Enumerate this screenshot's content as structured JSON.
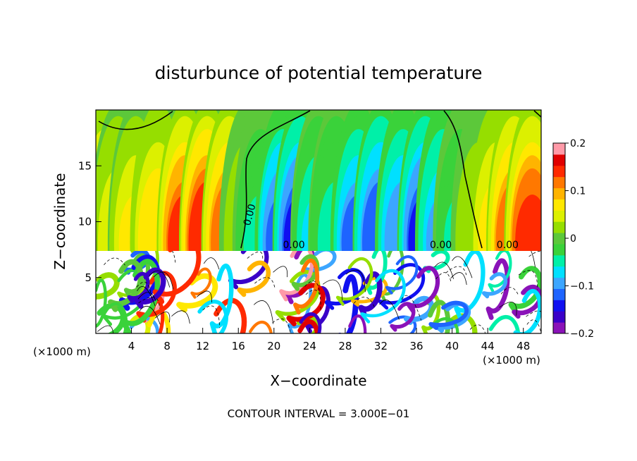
{
  "chart_data": {
    "type": "heatmap",
    "title": "disturbunce of potential temperature",
    "xlabel": "X−coordinate",
    "ylabel": "Z−coordinate",
    "x_unit_left": "(×1000 m)",
    "x_unit_right": "(×1000 m)",
    "xlim": [
      0,
      50
    ],
    "ylim": [
      0,
      20
    ],
    "x_ticks": [
      4,
      8,
      12,
      16,
      20,
      24,
      28,
      32,
      36,
      40,
      44,
      48
    ],
    "y_ticks": [
      5,
      10,
      15
    ],
    "colorbar": {
      "ticks": [
        {
          "value": 0.2,
          "label": "0.2"
        },
        {
          "value": 0.1,
          "label": "0.1"
        },
        {
          "value": 0.0,
          "label": "0"
        },
        {
          "value": -0.1,
          "label": "−0.1"
        },
        {
          "value": -0.2,
          "label": "−0.2"
        }
      ],
      "range": [
        -0.2,
        0.2
      ],
      "colors": [
        "#8a12b8",
        "#3a00c8",
        "#1010f0",
        "#1e64ff",
        "#3ca6ff",
        "#00e0ff",
        "#00f0a8",
        "#3ad23a",
        "#5cc83a",
        "#96de00",
        "#dcf000",
        "#ffe800",
        "#ffb400",
        "#ff7800",
        "#ff2a00",
        "#e00000",
        "#ff9aa8"
      ]
    },
    "contour_label": "0.00",
    "footer": "CONTOUR INTERVAL = 3.000E−01",
    "upper_layer_columns": [
      {
        "x": 1.0,
        "v": 0.1
      },
      {
        "x": 2.5,
        "v": 0.06
      },
      {
        "x": 4.5,
        "v": 0.07
      },
      {
        "x": 7.0,
        "v": 0.09
      },
      {
        "x": 10.0,
        "v": 0.15
      },
      {
        "x": 12.5,
        "v": 0.17
      },
      {
        "x": 15.0,
        "v": 0.14
      },
      {
        "x": 17.0,
        "v": 0.03
      },
      {
        "x": 18.5,
        "v": -0.04
      },
      {
        "x": 21.0,
        "v": -0.13
      },
      {
        "x": 23.0,
        "v": -0.15
      },
      {
        "x": 25.0,
        "v": -0.07
      },
      {
        "x": 27.0,
        "v": -0.05
      },
      {
        "x": 29.5,
        "v": -0.12
      },
      {
        "x": 32.0,
        "v": -0.14
      },
      {
        "x": 34.5,
        "v": -0.11
      },
      {
        "x": 37.0,
        "v": -0.15
      },
      {
        "x": 39.0,
        "v": -0.1
      },
      {
        "x": 41.0,
        "v": -0.04
      },
      {
        "x": 43.0,
        "v": 0.03
      },
      {
        "x": 45.0,
        "v": 0.08
      },
      {
        "x": 47.0,
        "v": 0.14
      },
      {
        "x": 49.0,
        "v": 0.16
      }
    ]
  }
}
